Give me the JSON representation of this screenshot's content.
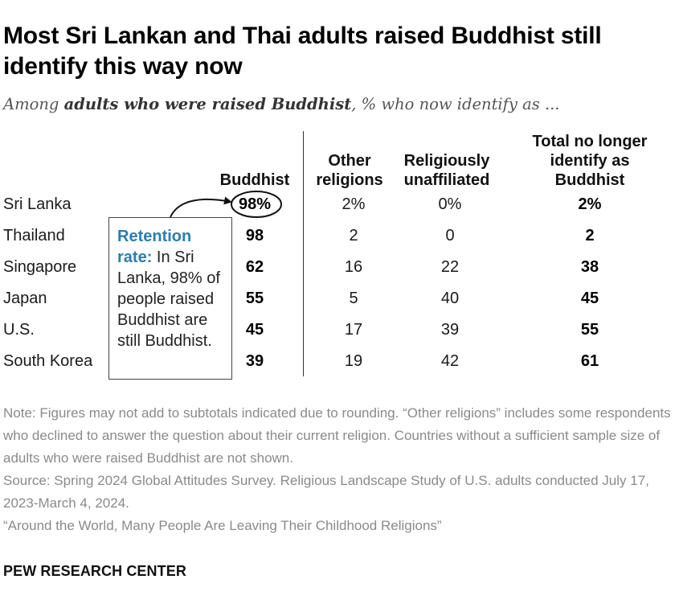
{
  "header": {
    "title": "Most Sri Lankan and Thai adults raised Buddhist still identify this way now",
    "subtitle_pre": "Among ",
    "subtitle_bold": "adults who were raised Buddhist",
    "subtitle_post": ", % who now identify as ..."
  },
  "columns": {
    "buddhist": "Buddhist",
    "other_1": "Other",
    "other_2": "religions",
    "unaff_1": "Religiously",
    "unaff_2": "unaffiliated",
    "total_1": "Total no longer",
    "total_2": "identify as",
    "total_3": "Buddhist"
  },
  "chart_data": {
    "type": "table",
    "columns": [
      "Buddhist",
      "Other religions",
      "Religiously unaffiliated",
      "Total no longer identify as Buddhist"
    ],
    "rows": [
      {
        "country": "Sri Lanka",
        "buddhist": "98%",
        "other": "2%",
        "unaffiliated": "0%",
        "total_no_longer": "2%"
      },
      {
        "country": "Thailand",
        "buddhist": "98",
        "other": "2",
        "unaffiliated": "0",
        "total_no_longer": "2"
      },
      {
        "country": "Singapore",
        "buddhist": "62",
        "other": "16",
        "unaffiliated": "22",
        "total_no_longer": "38"
      },
      {
        "country": "Japan",
        "buddhist": "55",
        "other": "5",
        "unaffiliated": "40",
        "total_no_longer": "45"
      },
      {
        "country": "U.S.",
        "buddhist": "45",
        "other": "17",
        "unaffiliated": "39",
        "total_no_longer": "55"
      },
      {
        "country": "South Korea",
        "buddhist": "39",
        "other": "19",
        "unaffiliated": "42",
        "total_no_longer": "61"
      }
    ]
  },
  "callout": {
    "heading": "Retention rate:",
    "body": " In Sri Lanka, 98% of people raised Buddhist are still Buddhist."
  },
  "notes": {
    "note": "Note: Figures may not add to subtotals indicated due to rounding. “Other religions” includes some respondents who declined to answer the question about their current religion. Countries without a sufficient sample size of adults who were raised Buddhist are not shown.",
    "source": "Source: Spring 2024 Global Attitudes Survey. Religious Landscape Study of U.S. adults conducted July 17, 2023-March 4, 2024.",
    "report": "“Around the World, Many People Are Leaving Their Childhood Religions”"
  },
  "brand": "PEW RESEARCH CENTER",
  "colors": {
    "highlight": "#2a7db5",
    "note_text": "#8a8a8a"
  }
}
